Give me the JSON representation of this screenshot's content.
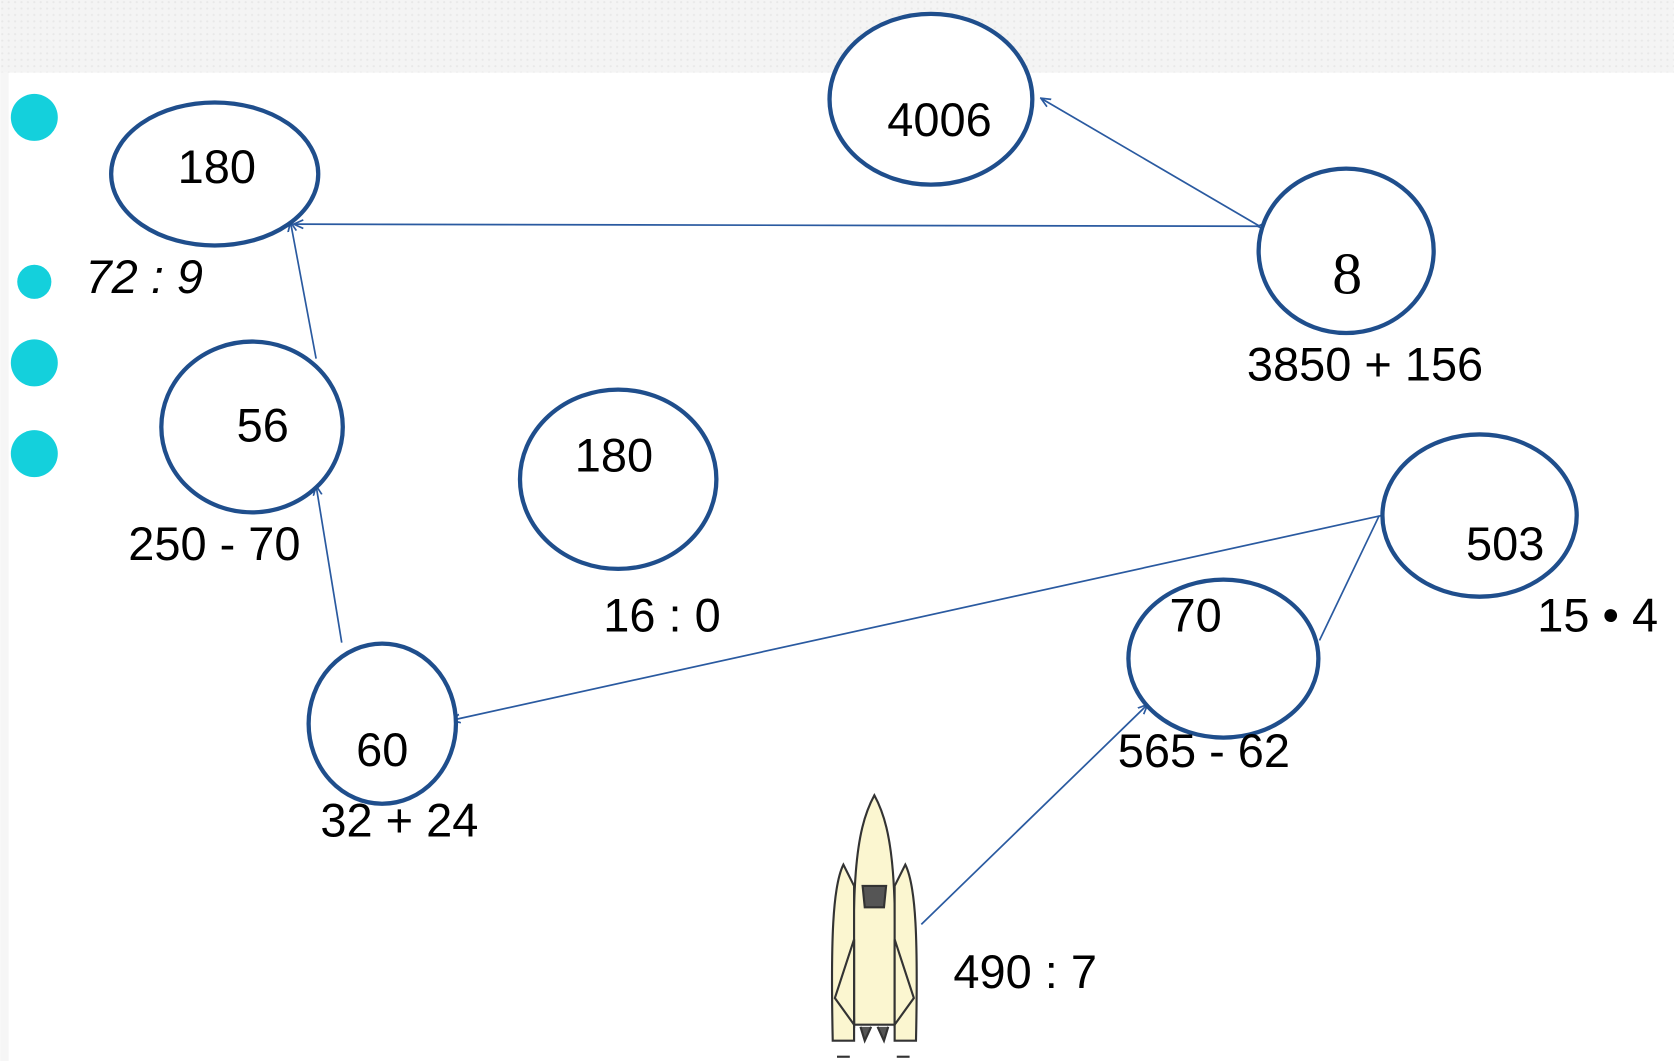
{
  "nodes": [
    {
      "label": "180"
    },
    {
      "label": "4006"
    },
    {
      "label": "8"
    },
    {
      "label": "56"
    },
    {
      "label": "180"
    },
    {
      "label": "503"
    },
    {
      "label": "70"
    },
    {
      "label": "60"
    }
  ],
  "expressions": [
    {
      "label": "72 : 9"
    },
    {
      "label": "3850 + 156"
    },
    {
      "label": "250 - 70"
    },
    {
      "label": "16 : 0"
    },
    {
      "label": "15 • 4"
    },
    {
      "label": "565 - 62"
    },
    {
      "label": "32 + 24"
    },
    {
      "label": "490 : 7"
    }
  ]
}
